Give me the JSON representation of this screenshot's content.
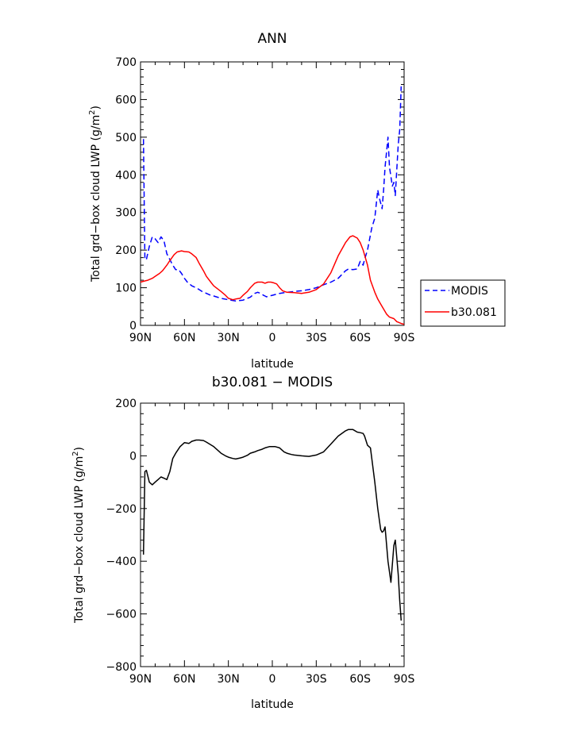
{
  "chart_data": [
    {
      "type": "line",
      "title": "ANN",
      "xlabel": "latitude",
      "ylabel": "Total grd-box cloud LWP (g/m²)",
      "ylim": [
        0,
        700
      ],
      "yticks": [
        0,
        100,
        200,
        300,
        400,
        500,
        600,
        700
      ],
      "xlim": [
        90,
        -90
      ],
      "xticks": [
        90,
        60,
        30,
        0,
        -30,
        -60,
        -90
      ],
      "xticklabels": [
        "90N",
        "60N",
        "30N",
        "0",
        "30S",
        "60S",
        "90S"
      ],
      "grid": false,
      "legend": "right",
      "series": [
        {
          "name": "MODIS",
          "color": "#0000ff",
          "dash": "dashed",
          "x": [
            88,
            87,
            86,
            84,
            82,
            80,
            78,
            76,
            74,
            72,
            70,
            68,
            66,
            64,
            62,
            60,
            58,
            55,
            52,
            50,
            48,
            45,
            42,
            40,
            35,
            30,
            25,
            20,
            15,
            12,
            10,
            8,
            6,
            5,
            4,
            2,
            0,
            -2,
            -5,
            -10,
            -15,
            -20,
            -25,
            -30,
            -35,
            -40,
            -45,
            -50,
            -52,
            -55,
            -58,
            -60,
            -62,
            -63,
            -65,
            -66,
            -68,
            -70,
            -72,
            -73,
            -75,
            -76,
            -77,
            -79,
            -80,
            -82,
            -83,
            -84,
            -86,
            -87,
            -88
          ],
          "values": [
            495,
            175,
            175,
            210,
            235,
            230,
            220,
            235,
            225,
            190,
            175,
            160,
            148,
            148,
            138,
            125,
            115,
            105,
            100,
            95,
            90,
            85,
            80,
            78,
            72,
            68,
            65,
            67,
            75,
            85,
            88,
            85,
            80,
            78,
            76,
            78,
            80,
            82,
            85,
            88,
            90,
            92,
            95,
            100,
            108,
            115,
            125,
            145,
            150,
            148,
            150,
            170,
            160,
            175,
            200,
            220,
            260,
            285,
            360,
            340,
            310,
            360,
            420,
            500,
            420,
            370,
            380,
            345,
            480,
            520,
            635
          ]
        },
        {
          "name": "b30.081",
          "color": "#ff0000",
          "dash": "solid",
          "x": [
            90,
            87,
            85,
            82,
            80,
            77,
            75,
            72,
            70,
            67,
            65,
            62,
            60,
            57,
            55,
            52,
            50,
            47,
            45,
            42,
            40,
            35,
            32,
            30,
            27,
            25,
            22,
            20,
            17,
            15,
            12,
            10,
            7,
            5,
            3,
            1,
            -1,
            -3,
            -5,
            -7,
            -10,
            -15,
            -20,
            -25,
            -30,
            -35,
            -40,
            -45,
            -50,
            -53,
            -55,
            -58,
            -60,
            -62,
            -65,
            -67,
            -70,
            -72,
            -75,
            -78,
            -80,
            -83,
            -85,
            -88,
            -90
          ],
          "values": [
            115,
            118,
            120,
            125,
            130,
            138,
            145,
            160,
            172,
            188,
            195,
            198,
            196,
            195,
            190,
            180,
            165,
            145,
            130,
            115,
            105,
            90,
            80,
            72,
            68,
            70,
            72,
            80,
            90,
            100,
            112,
            115,
            115,
            112,
            115,
            115,
            113,
            110,
            100,
            92,
            88,
            87,
            85,
            88,
            95,
            110,
            140,
            185,
            220,
            235,
            238,
            232,
            220,
            200,
            160,
            120,
            88,
            70,
            50,
            30,
            22,
            18,
            10,
            5,
            3
          ]
        }
      ]
    },
    {
      "type": "line",
      "title": "b30.081 − MODIS",
      "xlabel": "latitude",
      "ylabel": "Total grd-box cloud LWP (g/m²)",
      "ylim": [
        -800,
        200
      ],
      "yticks": [
        -800,
        -600,
        -400,
        -200,
        0,
        200
      ],
      "xlim": [
        90,
        -90
      ],
      "xticks": [
        90,
        60,
        30,
        0,
        -30,
        -60,
        -90
      ],
      "xticklabels": [
        "90N",
        "60N",
        "30N",
        "0",
        "30S",
        "60S",
        "90S"
      ],
      "grid": false,
      "series": [
        {
          "color": "#000000",
          "dash": "solid",
          "x": [
            88,
            87,
            86,
            84,
            82,
            80,
            78,
            76,
            74,
            72,
            70,
            68,
            66,
            63,
            60,
            57,
            55,
            52,
            50,
            47,
            45,
            42,
            40,
            37,
            35,
            32,
            30,
            27,
            25,
            22,
            20,
            17,
            15,
            12,
            10,
            7,
            5,
            2,
            0,
            -2,
            -5,
            -8,
            -10,
            -13,
            -15,
            -20,
            -25,
            -30,
            -35,
            -40,
            -45,
            -50,
            -52,
            -55,
            -58,
            -60,
            -62,
            -63,
            -65,
            -67,
            -70,
            -72,
            -74,
            -75,
            -76,
            -77,
            -79,
            -81,
            -83,
            -84,
            -86,
            -87,
            -88
          ],
          "values": [
            -375,
            -60,
            -55,
            -100,
            -110,
            -100,
            -90,
            -80,
            -85,
            -90,
            -60,
            -10,
            10,
            35,
            50,
            47,
            55,
            60,
            60,
            58,
            52,
            42,
            35,
            20,
            10,
            0,
            -5,
            -10,
            -12,
            -8,
            -5,
            2,
            10,
            15,
            20,
            25,
            30,
            35,
            35,
            35,
            30,
            15,
            10,
            5,
            3,
            0,
            -2,
            3,
            15,
            45,
            75,
            95,
            100,
            100,
            90,
            88,
            85,
            75,
            40,
            30,
            -100,
            -200,
            -280,
            -290,
            -285,
            -270,
            -400,
            -480,
            -340,
            -320,
            -450,
            -550,
            -625
          ]
        }
      ]
    }
  ]
}
